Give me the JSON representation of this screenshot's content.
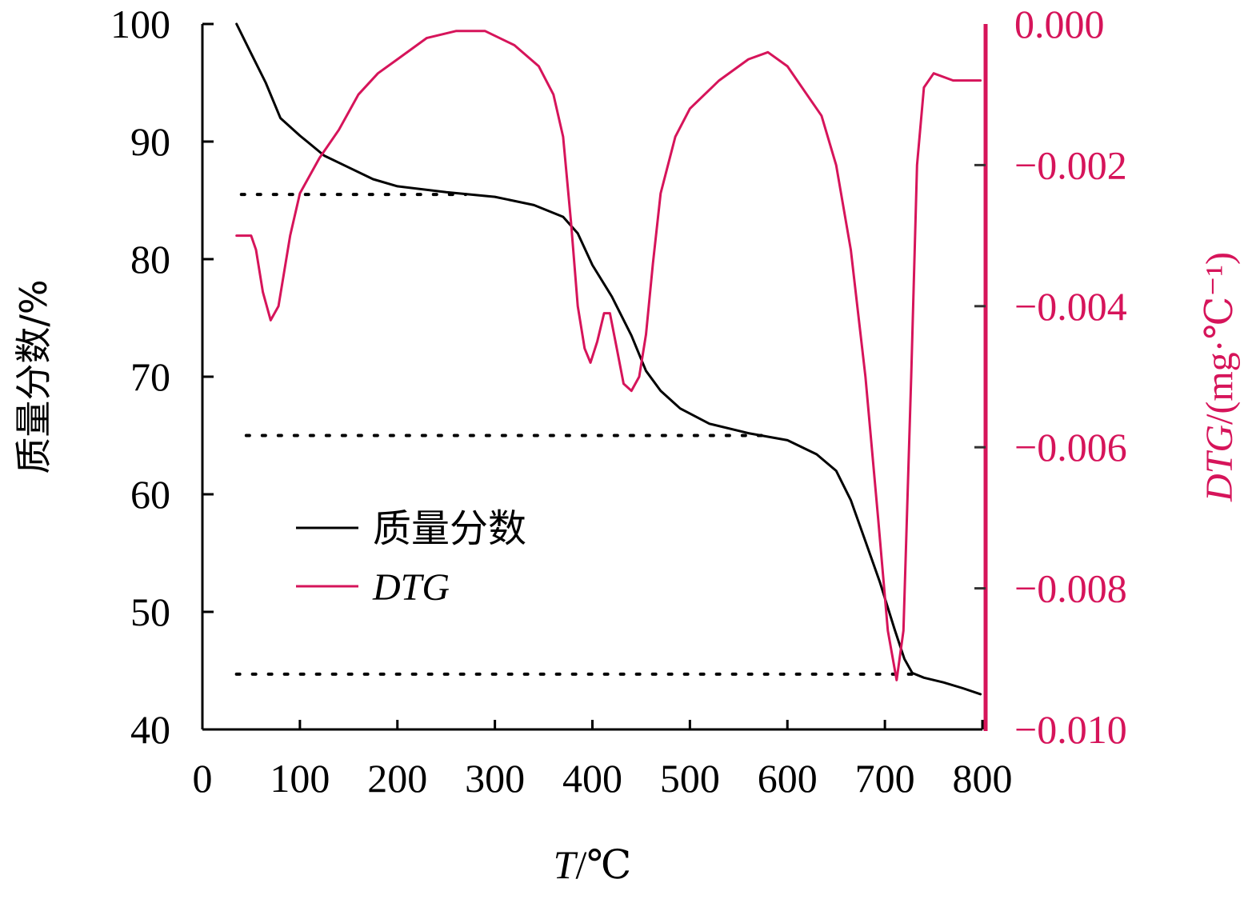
{
  "chart_data": {
    "type": "line",
    "xlabel": {
      "italic": "T",
      "rest": "/℃"
    },
    "ylabel_left": "质量分数/%",
    "ylabel_right": {
      "italic": "DTG",
      "rest": "/(mg·℃⁻¹)"
    },
    "xlim": [
      0,
      800
    ],
    "ylim_left": [
      40,
      100
    ],
    "ylim_right": [
      -0.01,
      0.0
    ],
    "x_ticks": [
      0,
      100,
      200,
      300,
      400,
      500,
      600,
      700,
      800
    ],
    "y_left_ticks": [
      40,
      50,
      60,
      70,
      80,
      90,
      100
    ],
    "y_right_ticks": [
      "0.000",
      "−0.002",
      "−0.004",
      "−0.006",
      "−0.008",
      "−0.010"
    ],
    "y_right_tick_values": [
      0.0,
      -0.002,
      -0.004,
      -0.006,
      -0.008,
      -0.01
    ],
    "grid": false,
    "legend_position": "center-left",
    "series": [
      {
        "name": "质量分数",
        "axis": "left",
        "color": "#000000",
        "points": [
          [
            35,
            100
          ],
          [
            50,
            97.5
          ],
          [
            65,
            95
          ],
          [
            80,
            92
          ],
          [
            100,
            90.5
          ],
          [
            125,
            88.8
          ],
          [
            150,
            87.8
          ],
          [
            175,
            86.8
          ],
          [
            200,
            86.2
          ],
          [
            250,
            85.7
          ],
          [
            300,
            85.3
          ],
          [
            340,
            84.6
          ],
          [
            370,
            83.6
          ],
          [
            385,
            82.2
          ],
          [
            400,
            79.5
          ],
          [
            420,
            76.8
          ],
          [
            440,
            73.5
          ],
          [
            455,
            70.5
          ],
          [
            470,
            68.8
          ],
          [
            490,
            67.3
          ],
          [
            520,
            66.0
          ],
          [
            560,
            65.2
          ],
          [
            600,
            64.6
          ],
          [
            630,
            63.4
          ],
          [
            650,
            62.0
          ],
          [
            665,
            59.5
          ],
          [
            680,
            56.0
          ],
          [
            695,
            52.5
          ],
          [
            710,
            48.5
          ],
          [
            720,
            46.0
          ],
          [
            728,
            44.8
          ],
          [
            740,
            44.4
          ],
          [
            760,
            44.0
          ],
          [
            780,
            43.5
          ],
          [
            798,
            43.0
          ]
        ]
      },
      {
        "name": "DTG",
        "axis": "right",
        "color": "#d6145a",
        "points": [
          [
            35,
            -0.003
          ],
          [
            50,
            -0.003
          ],
          [
            55,
            -0.0032
          ],
          [
            62,
            -0.0038
          ],
          [
            70,
            -0.0042
          ],
          [
            78,
            -0.004
          ],
          [
            90,
            -0.003
          ],
          [
            100,
            -0.0024
          ],
          [
            120,
            -0.0019
          ],
          [
            140,
            -0.0015
          ],
          [
            160,
            -0.001
          ],
          [
            180,
            -0.0007
          ],
          [
            200,
            -0.0005
          ],
          [
            230,
            -0.0002
          ],
          [
            260,
            -0.0001
          ],
          [
            290,
            -0.0001
          ],
          [
            320,
            -0.0003
          ],
          [
            345,
            -0.0006
          ],
          [
            360,
            -0.001
          ],
          [
            370,
            -0.0016
          ],
          [
            378,
            -0.0028
          ],
          [
            385,
            -0.004
          ],
          [
            392,
            -0.0046
          ],
          [
            398,
            -0.0048
          ],
          [
            405,
            -0.0045
          ],
          [
            412,
            -0.0041
          ],
          [
            418,
            -0.0041
          ],
          [
            425,
            -0.0046
          ],
          [
            432,
            -0.0051
          ],
          [
            440,
            -0.0052
          ],
          [
            448,
            -0.005
          ],
          [
            455,
            -0.0044
          ],
          [
            462,
            -0.0034
          ],
          [
            470,
            -0.0024
          ],
          [
            485,
            -0.0016
          ],
          [
            500,
            -0.0012
          ],
          [
            530,
            -0.0008
          ],
          [
            560,
            -0.0005
          ],
          [
            580,
            -0.0004
          ],
          [
            600,
            -0.0006
          ],
          [
            620,
            -0.001
          ],
          [
            635,
            -0.0013
          ],
          [
            650,
            -0.002
          ],
          [
            665,
            -0.0032
          ],
          [
            680,
            -0.005
          ],
          [
            693,
            -0.007
          ],
          [
            703,
            -0.0086
          ],
          [
            712,
            -0.0093
          ],
          [
            719,
            -0.0086
          ],
          [
            727,
            -0.005
          ],
          [
            733,
            -0.002
          ],
          [
            740,
            -0.0009
          ],
          [
            750,
            -0.0007
          ],
          [
            770,
            -0.0008
          ],
          [
            798,
            -0.0008
          ]
        ]
      }
    ],
    "reference_lines": [
      {
        "axis": "left",
        "y": 85.5,
        "x_start": 40,
        "x_end": 270
      },
      {
        "axis": "left",
        "y": 65.0,
        "x_start": 45,
        "x_end": 580
      },
      {
        "axis": "left",
        "y": 44.7,
        "x_start": 35,
        "x_end": 730
      }
    ]
  }
}
